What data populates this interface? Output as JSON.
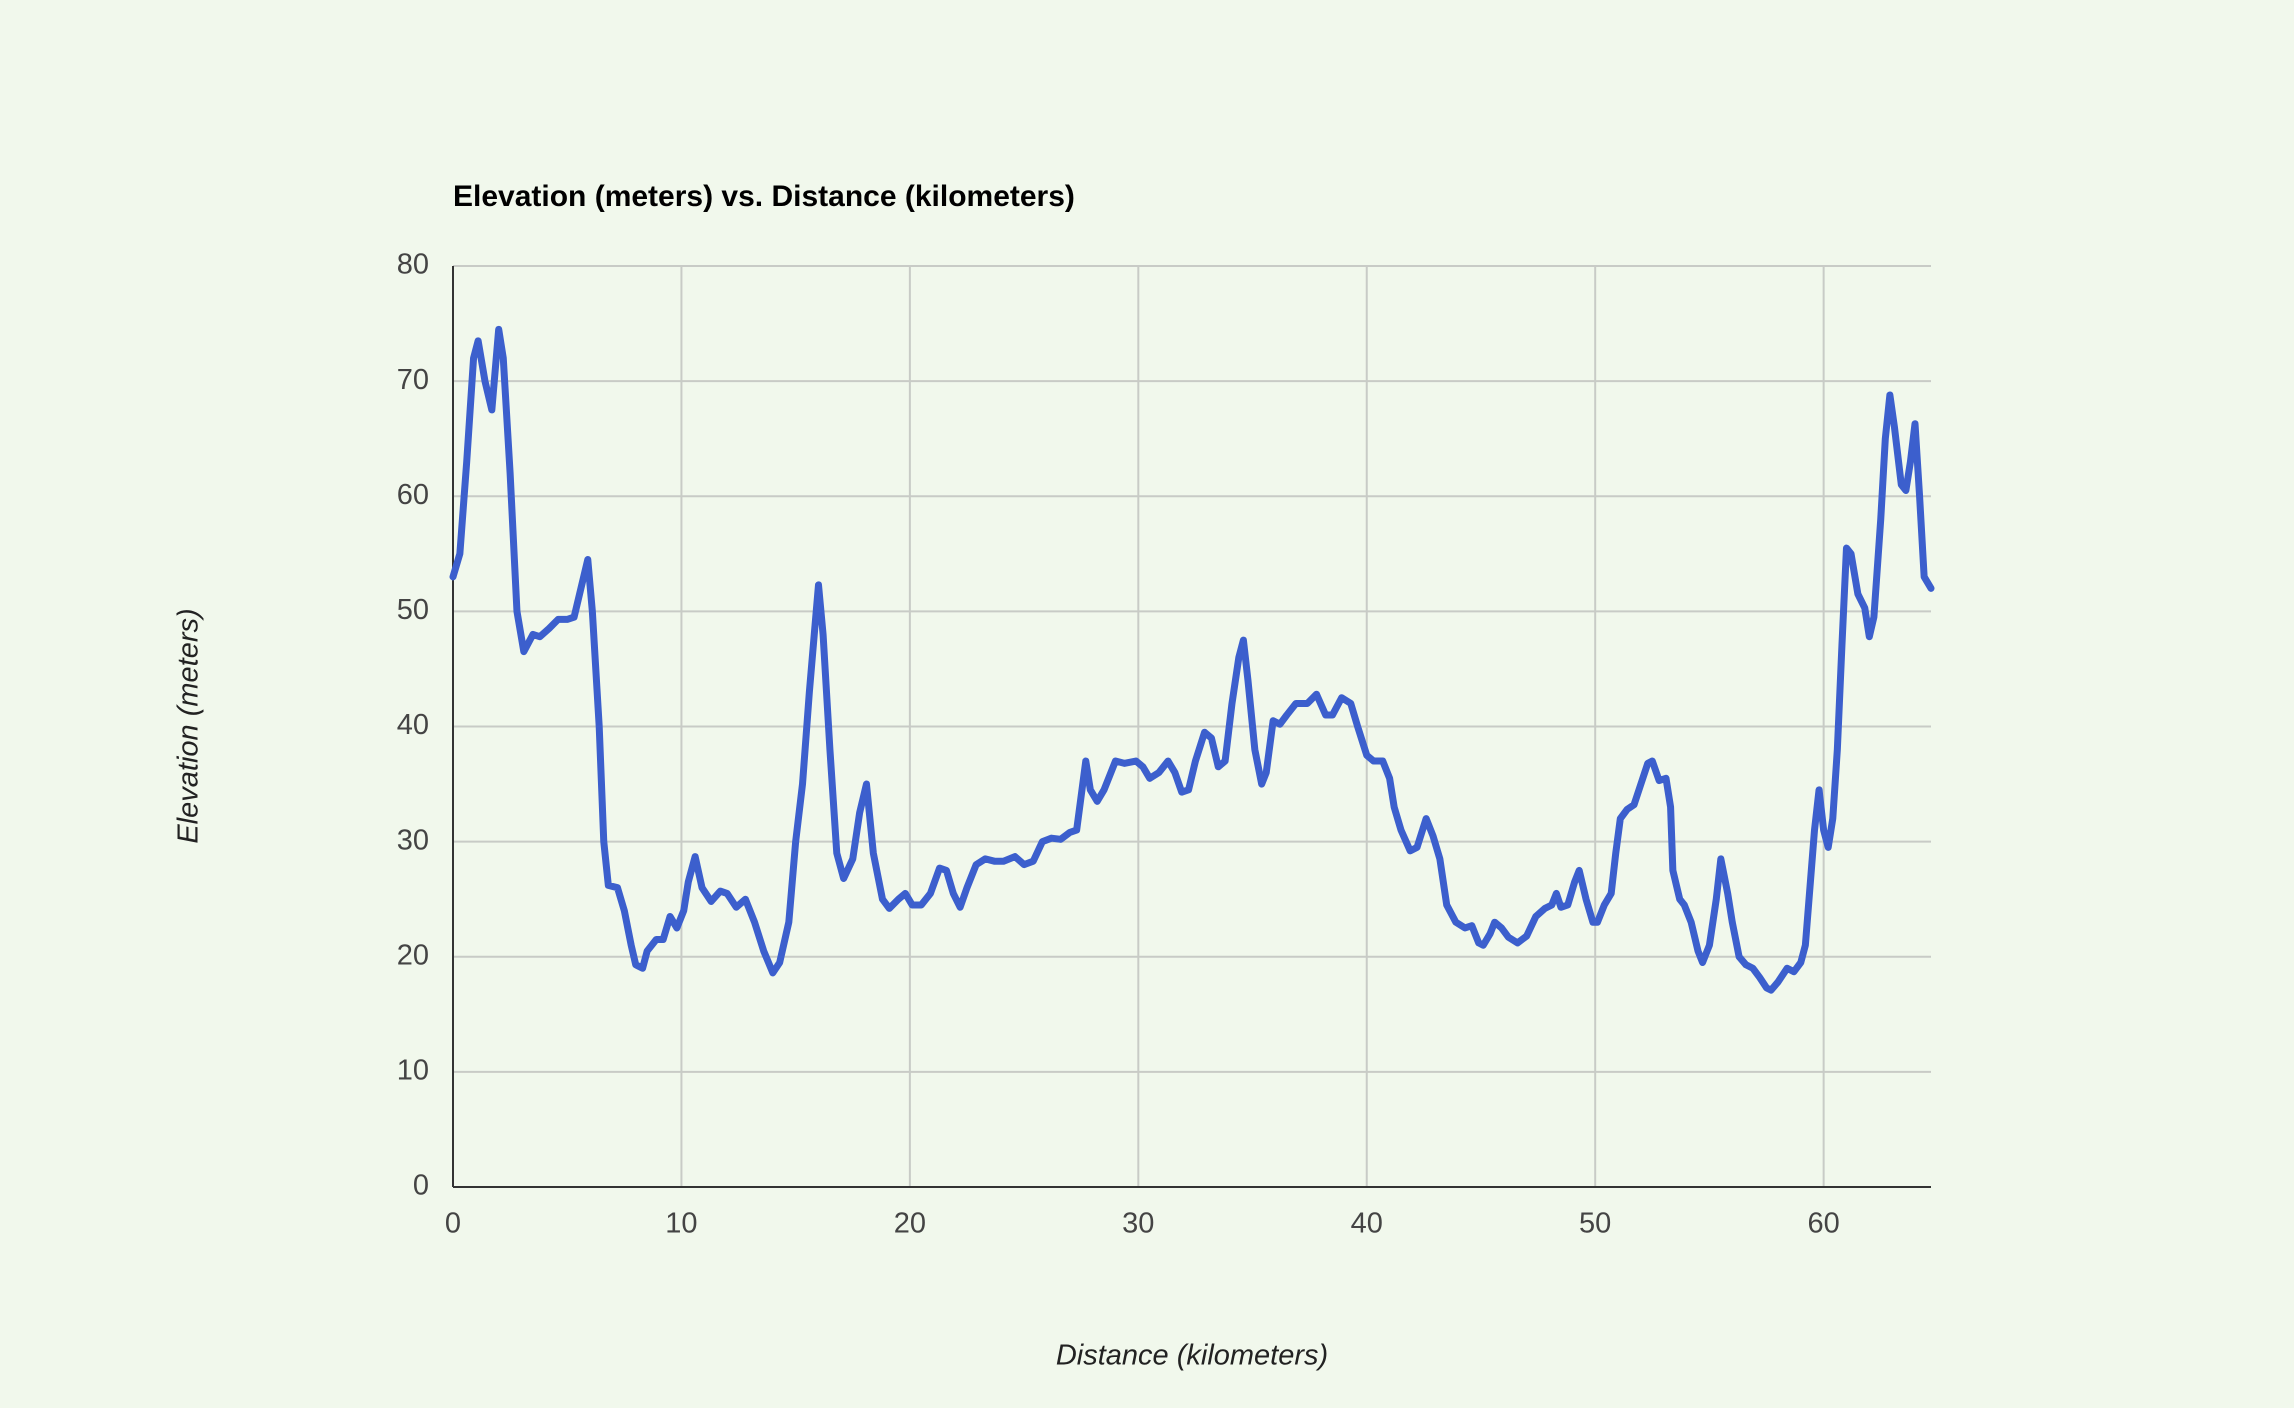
{
  "chart_data": {
    "type": "line",
    "title": "Elevation (meters) vs. Distance (kilometers)",
    "x_label": "Distance (kilometers)",
    "y_label": "Elevation (meters)",
    "color": "#3c5fcd",
    "grid": true,
    "xlim": [
      0,
      64.7
    ],
    "xticks": [
      0,
      10,
      20,
      30,
      40,
      50,
      60
    ],
    "ylim": [
      0,
      80
    ],
    "yticks": [
      0,
      10,
      20,
      30,
      40,
      50,
      60,
      70,
      80
    ],
    "x": [
      0,
      0.3,
      0.6,
      0.9,
      1.1,
      1.4,
      1.7,
      2.0,
      2.2,
      2.5,
      2.8,
      3.1,
      3.5,
      3.8,
      4.2,
      4.6,
      5.0,
      5.3,
      5.6,
      5.9,
      6.1,
      6.4,
      6.6,
      6.8,
      7.2,
      7.5,
      7.8,
      8.0,
      8.3,
      8.5,
      8.9,
      9.2,
      9.5,
      9.8,
      10.1,
      10.3,
      10.6,
      10.9,
      11.3,
      11.7,
      12.0,
      12.4,
      12.8,
      13.2,
      13.6,
      14.0,
      14.3,
      14.7,
      15.0,
      15.3,
      15.6,
      15.9,
      16.0,
      16.2,
      16.5,
      16.8,
      17.1,
      17.5,
      17.8,
      18.1,
      18.4,
      18.8,
      19.1,
      19.5,
      19.8,
      20.1,
      20.5,
      20.9,
      21.3,
      21.6,
      21.9,
      22.2,
      22.5,
      22.9,
      23.3,
      23.7,
      24.1,
      24.6,
      25.0,
      25.4,
      25.8,
      26.2,
      26.6,
      27.0,
      27.3,
      27.5,
      27.7,
      27.9,
      28.2,
      28.5,
      29.0,
      29.4,
      29.9,
      30.2,
      30.5,
      30.9,
      31.3,
      31.6,
      31.9,
      32.2,
      32.5,
      32.9,
      33.2,
      33.5,
      33.8,
      34.1,
      34.4,
      34.6,
      34.8,
      35.1,
      35.4,
      35.6,
      35.9,
      36.2,
      36.5,
      36.9,
      37.4,
      37.8,
      38.2,
      38.5,
      38.9,
      39.3,
      39.6,
      40.0,
      40.3,
      40.7,
      41.0,
      41.2,
      41.5,
      41.9,
      42.2,
      42.6,
      42.9,
      43.2,
      43.5,
      43.9,
      44.3,
      44.6,
      44.9,
      45.1,
      45.4,
      45.6,
      45.9,
      46.2,
      46.6,
      47.0,
      47.4,
      47.8,
      48.1,
      48.3,
      48.5,
      48.8,
      49.1,
      49.3,
      49.6,
      49.9,
      50.1,
      50.4,
      50.7,
      50.9,
      51.1,
      51.4,
      51.7,
      52.0,
      52.3,
      52.5,
      52.8,
      53.1,
      53.3,
      53.4,
      53.7,
      53.9,
      54.2,
      54.5,
      54.7,
      55.0,
      55.3,
      55.5,
      55.8,
      56.0,
      56.3,
      56.6,
      56.9,
      57.2,
      57.5,
      57.7,
      58.0,
      58.4,
      58.7,
      59.0,
      59.2,
      59.4,
      59.6,
      59.8,
      60.0,
      60.2,
      60.4,
      60.6,
      60.8,
      61.0,
      61.2,
      61.5,
      61.8,
      62.0,
      62.2,
      62.5,
      62.7,
      62.9,
      63.1,
      63.4,
      63.6,
      63.8,
      64.0,
      64.2,
      64.4,
      64.7
    ],
    "values": [
      53,
      55,
      63,
      72,
      73.5,
      70,
      67.5,
      74.5,
      72,
      62,
      50,
      46.5,
      48,
      47.8,
      48.5,
      49.3,
      49.3,
      49.5,
      52,
      54.5,
      50,
      40,
      30,
      26.2,
      26,
      24,
      21,
      19.3,
      19,
      20.5,
      21.5,
      21.5,
      23.5,
      22.5,
      24,
      26.5,
      28.7,
      26,
      24.8,
      25.7,
      25.5,
      24.3,
      25,
      23,
      20.5,
      18.6,
      19.5,
      23,
      30,
      35,
      43,
      50,
      52.3,
      48,
      38,
      29,
      26.8,
      28.5,
      32.5,
      35,
      29,
      25,
      24.2,
      25,
      25.5,
      24.5,
      24.5,
      25.5,
      27.7,
      27.5,
      25.5,
      24.3,
      26,
      28,
      28.5,
      28.3,
      28.3,
      28.7,
      28,
      28.3,
      30,
      30.3,
      30.2,
      30.8,
      31,
      34,
      37,
      34.5,
      33.5,
      34.5,
      37,
      36.8,
      37,
      36.5,
      35.5,
      36,
      37,
      36,
      34.3,
      34.5,
      37,
      39.5,
      39,
      36.5,
      37,
      42,
      46,
      47.5,
      44,
      38,
      35,
      36,
      40.5,
      40.2,
      41,
      42,
      42,
      42.8,
      41,
      41,
      42.5,
      42,
      40,
      37.5,
      37,
      37,
      35.5,
      33,
      31,
      29.2,
      29.5,
      32,
      30.5,
      28.5,
      24.5,
      23,
      22.5,
      22.7,
      21.2,
      21,
      22,
      23,
      22.5,
      21.7,
      21.2,
      21.8,
      23.5,
      24.2,
      24.5,
      25.5,
      24.3,
      24.5,
      26.5,
      27.5,
      25,
      23,
      23,
      24.5,
      25.5,
      29,
      32,
      32.8,
      33.2,
      35,
      36.8,
      37,
      35.3,
      35.5,
      33,
      27.5,
      25,
      24.5,
      23,
      20.5,
      19.5,
      21,
      25,
      28.5,
      25.5,
      23,
      20,
      19.3,
      19,
      18.2,
      17.3,
      17.1,
      17.8,
      19,
      18.7,
      19.5,
      21,
      26,
      31,
      34.5,
      31,
      29.5,
      32,
      38,
      47,
      55.5,
      55,
      51.5,
      50.3,
      47.8,
      49.5,
      58,
      65,
      68.8,
      66,
      61,
      60.5,
      63,
      66.3,
      60,
      53,
      52
    ]
  }
}
